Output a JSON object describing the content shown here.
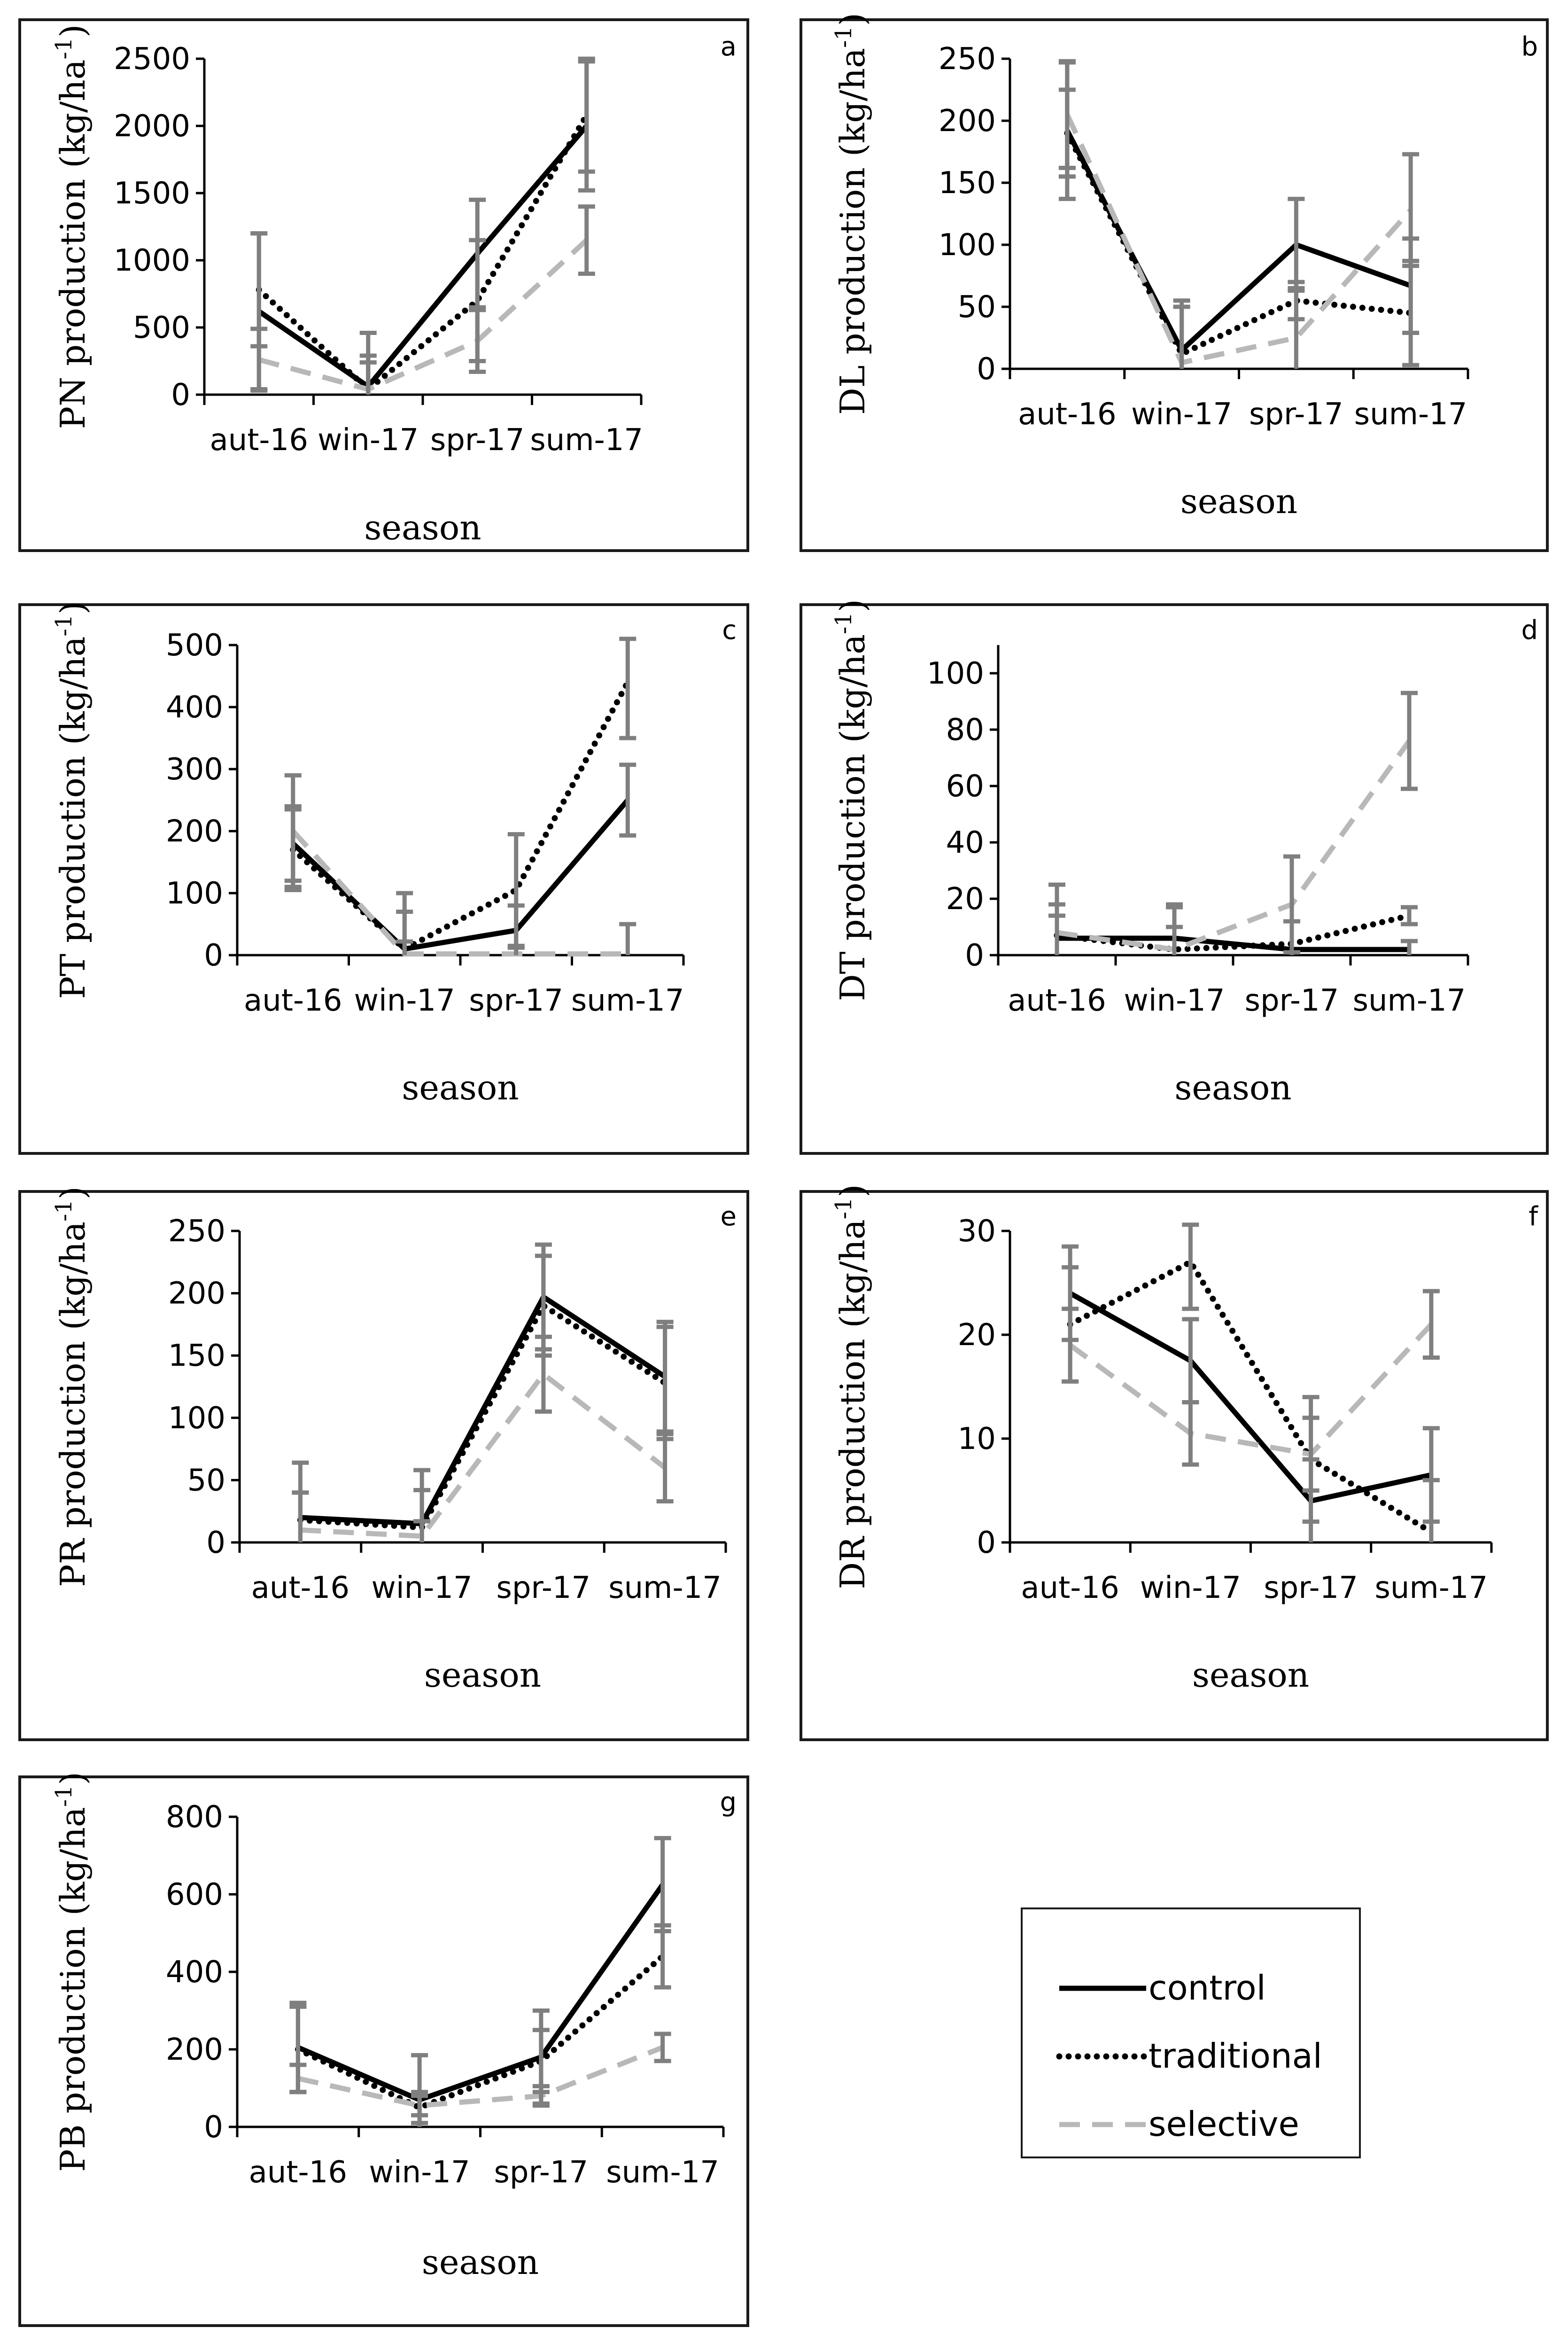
{
  "legend": {
    "entries": [
      {
        "name": "control",
        "color": "#000000",
        "dash": "solid"
      },
      {
        "name": "traditional",
        "color": "#000000",
        "dash": "dotted"
      },
      {
        "name": "selective",
        "color": "#b8b8b8",
        "dash": "dashed"
      }
    ]
  },
  "chart_data": [
    {
      "type": "line",
      "panel": "a",
      "ylabel_main": "PN production (kg/ha",
      "ylabel_sup": "-1",
      "ylabel_close": ")",
      "xlabel": "season",
      "categories": [
        "aut-16",
        "win-17",
        "spr-17",
        "sum-17"
      ],
      "ylim": [
        0,
        2500
      ],
      "yticks": [
        0,
        500,
        1000,
        1500,
        2000,
        2500
      ],
      "series": [
        {
          "name": "control",
          "values": [
            620,
            60,
            1050,
            2000
          ],
          "errors": [
            580,
            400,
            400,
            480
          ]
        },
        {
          "name": "traditional",
          "values": [
            780,
            40,
            700,
            2080
          ],
          "errors": [
            420,
            250,
            450,
            420
          ]
        },
        {
          "name": "selective",
          "values": [
            260,
            40,
            400,
            1150
          ],
          "errors": [
            230,
            200,
            230,
            250
          ]
        }
      ]
    },
    {
      "type": "line",
      "panel": "b",
      "ylabel_main": "DL  production (kg/ha",
      "ylabel_sup": "-1",
      "ylabel_close": ")",
      "xlabel": "season",
      "categories": [
        "aut-16",
        "win-17",
        "spr-17",
        "sum-17"
      ],
      "ylim": [
        0,
        250
      ],
      "yticks": [
        0,
        50,
        100,
        150,
        200,
        250
      ],
      "series": [
        {
          "name": "control",
          "values": [
            192,
            15,
            100,
            67
          ],
          "errors": [
            55,
            40,
            37,
            38
          ]
        },
        {
          "name": "traditional",
          "values": [
            190,
            12,
            55,
            45
          ],
          "errors": [
            35,
            38,
            15,
            42
          ]
        },
        {
          "name": "selective",
          "values": [
            205,
            5,
            25,
            128
          ],
          "errors": [
            43,
            45,
            40,
            45
          ]
        }
      ]
    },
    {
      "type": "line",
      "panel": "c",
      "ylabel_main": "PT  production (kg/ha",
      "ylabel_sup": "-1",
      "ylabel_close": ")",
      "xlabel": "season",
      "categories": [
        "aut-16",
        "win-17",
        "spr-17",
        "sum-17"
      ],
      "ylim": [
        0,
        500
      ],
      "yticks": [
        0,
        100,
        200,
        300,
        400,
        500
      ],
      "series": [
        {
          "name": "control",
          "values": [
            180,
            10,
            40,
            250
          ],
          "errors": [
            60,
            60,
            40,
            57
          ]
        },
        {
          "name": "traditional",
          "values": [
            170,
            10,
            105,
            440
          ],
          "errors": [
            65,
            90,
            90,
            90
          ]
        },
        {
          "name": "selective",
          "values": [
            200,
            2,
            2,
            2
          ],
          "errors": [
            90,
            20,
            10,
            48
          ]
        }
      ]
    },
    {
      "type": "line",
      "panel": "d",
      "ylabel_main": "DT  production (kg/ha",
      "ylabel_sup": "-1",
      "ylabel_close": ")",
      "xlabel": "season",
      "categories": [
        "aut-16",
        "win-17",
        "spr-17",
        "sum-17"
      ],
      "ylim": [
        0,
        110
      ],
      "yticks": [
        0,
        20,
        40,
        60,
        80,
        100
      ],
      "series": [
        {
          "name": "control",
          "values": [
            6,
            6,
            2,
            2
          ],
          "errors": [
            8,
            12,
            10,
            3
          ]
        },
        {
          "name": "traditional",
          "values": [
            7,
            2,
            4,
            14
          ],
          "errors": [
            18,
            15,
            8,
            3
          ]
        },
        {
          "name": "selective",
          "values": [
            8,
            2,
            18,
            76
          ],
          "errors": [
            10,
            8,
            17,
            17
          ]
        }
      ]
    },
    {
      "type": "line",
      "panel": "e",
      "ylabel_main": "PR  production (kg/ha",
      "ylabel_sup": "-1",
      "ylabel_close": ")",
      "xlabel": "season",
      "categories": [
        "aut-16",
        "win-17",
        "spr-17",
        "sum-17"
      ],
      "ylim": [
        0,
        250
      ],
      "yticks": [
        0,
        50,
        100,
        150,
        200,
        250
      ],
      "series": [
        {
          "name": "control",
          "values": [
            20,
            15,
            197,
            133
          ],
          "errors": [
            44,
            43,
            42,
            44
          ]
        },
        {
          "name": "traditional",
          "values": [
            18,
            12,
            190,
            128
          ],
          "errors": [
            22,
            30,
            40,
            45
          ]
        },
        {
          "name": "selective",
          "values": [
            10,
            5,
            135,
            60
          ],
          "errors": [
            30,
            12,
            30,
            27
          ]
        }
      ]
    },
    {
      "type": "line",
      "panel": "f",
      "ylabel_main": "DR  production (kg/ha",
      "ylabel_sup": "-1",
      "ylabel_close": ")",
      "xlabel": "season",
      "categories": [
        "aut-16",
        "win-17",
        "spr-17",
        "sum-17"
      ],
      "ylim": [
        0,
        30
      ],
      "yticks": [
        0,
        10,
        20,
        30
      ],
      "series": [
        {
          "name": "control",
          "values": [
            24,
            17.5,
            4,
            6.5
          ],
          "errors": [
            4.5,
            4,
            4,
            4.5
          ]
        },
        {
          "name": "traditional",
          "values": [
            21,
            27,
            8,
            1
          ],
          "errors": [
            5.5,
            4.5,
            6,
            5
          ]
        },
        {
          "name": "selective",
          "values": [
            19,
            10.5,
            8.5,
            21
          ],
          "errors": [
            3.5,
            3,
            3.5,
            3.2
          ]
        }
      ]
    },
    {
      "type": "line",
      "panel": "g",
      "ylabel_main": "PB  production (kg/ha",
      "ylabel_sup": "-1",
      "ylabel_close": ")",
      "xlabel": "season",
      "categories": [
        "aut-16",
        "win-17",
        "spr-17",
        "sum-17"
      ],
      "ylim": [
        0,
        800
      ],
      "yticks": [
        0,
        200,
        400,
        600,
        800
      ],
      "series": [
        {
          "name": "control",
          "values": [
            205,
            70,
            180,
            625
          ],
          "errors": [
            115,
            115,
            120,
            120
          ]
        },
        {
          "name": "traditional",
          "values": [
            200,
            50,
            170,
            440
          ],
          "errors": [
            110,
            40,
            80,
            80
          ]
        },
        {
          "name": "selective",
          "values": [
            125,
            55,
            80,
            205
          ],
          "errors": [
            35,
            25,
            25,
            35
          ]
        }
      ]
    }
  ]
}
